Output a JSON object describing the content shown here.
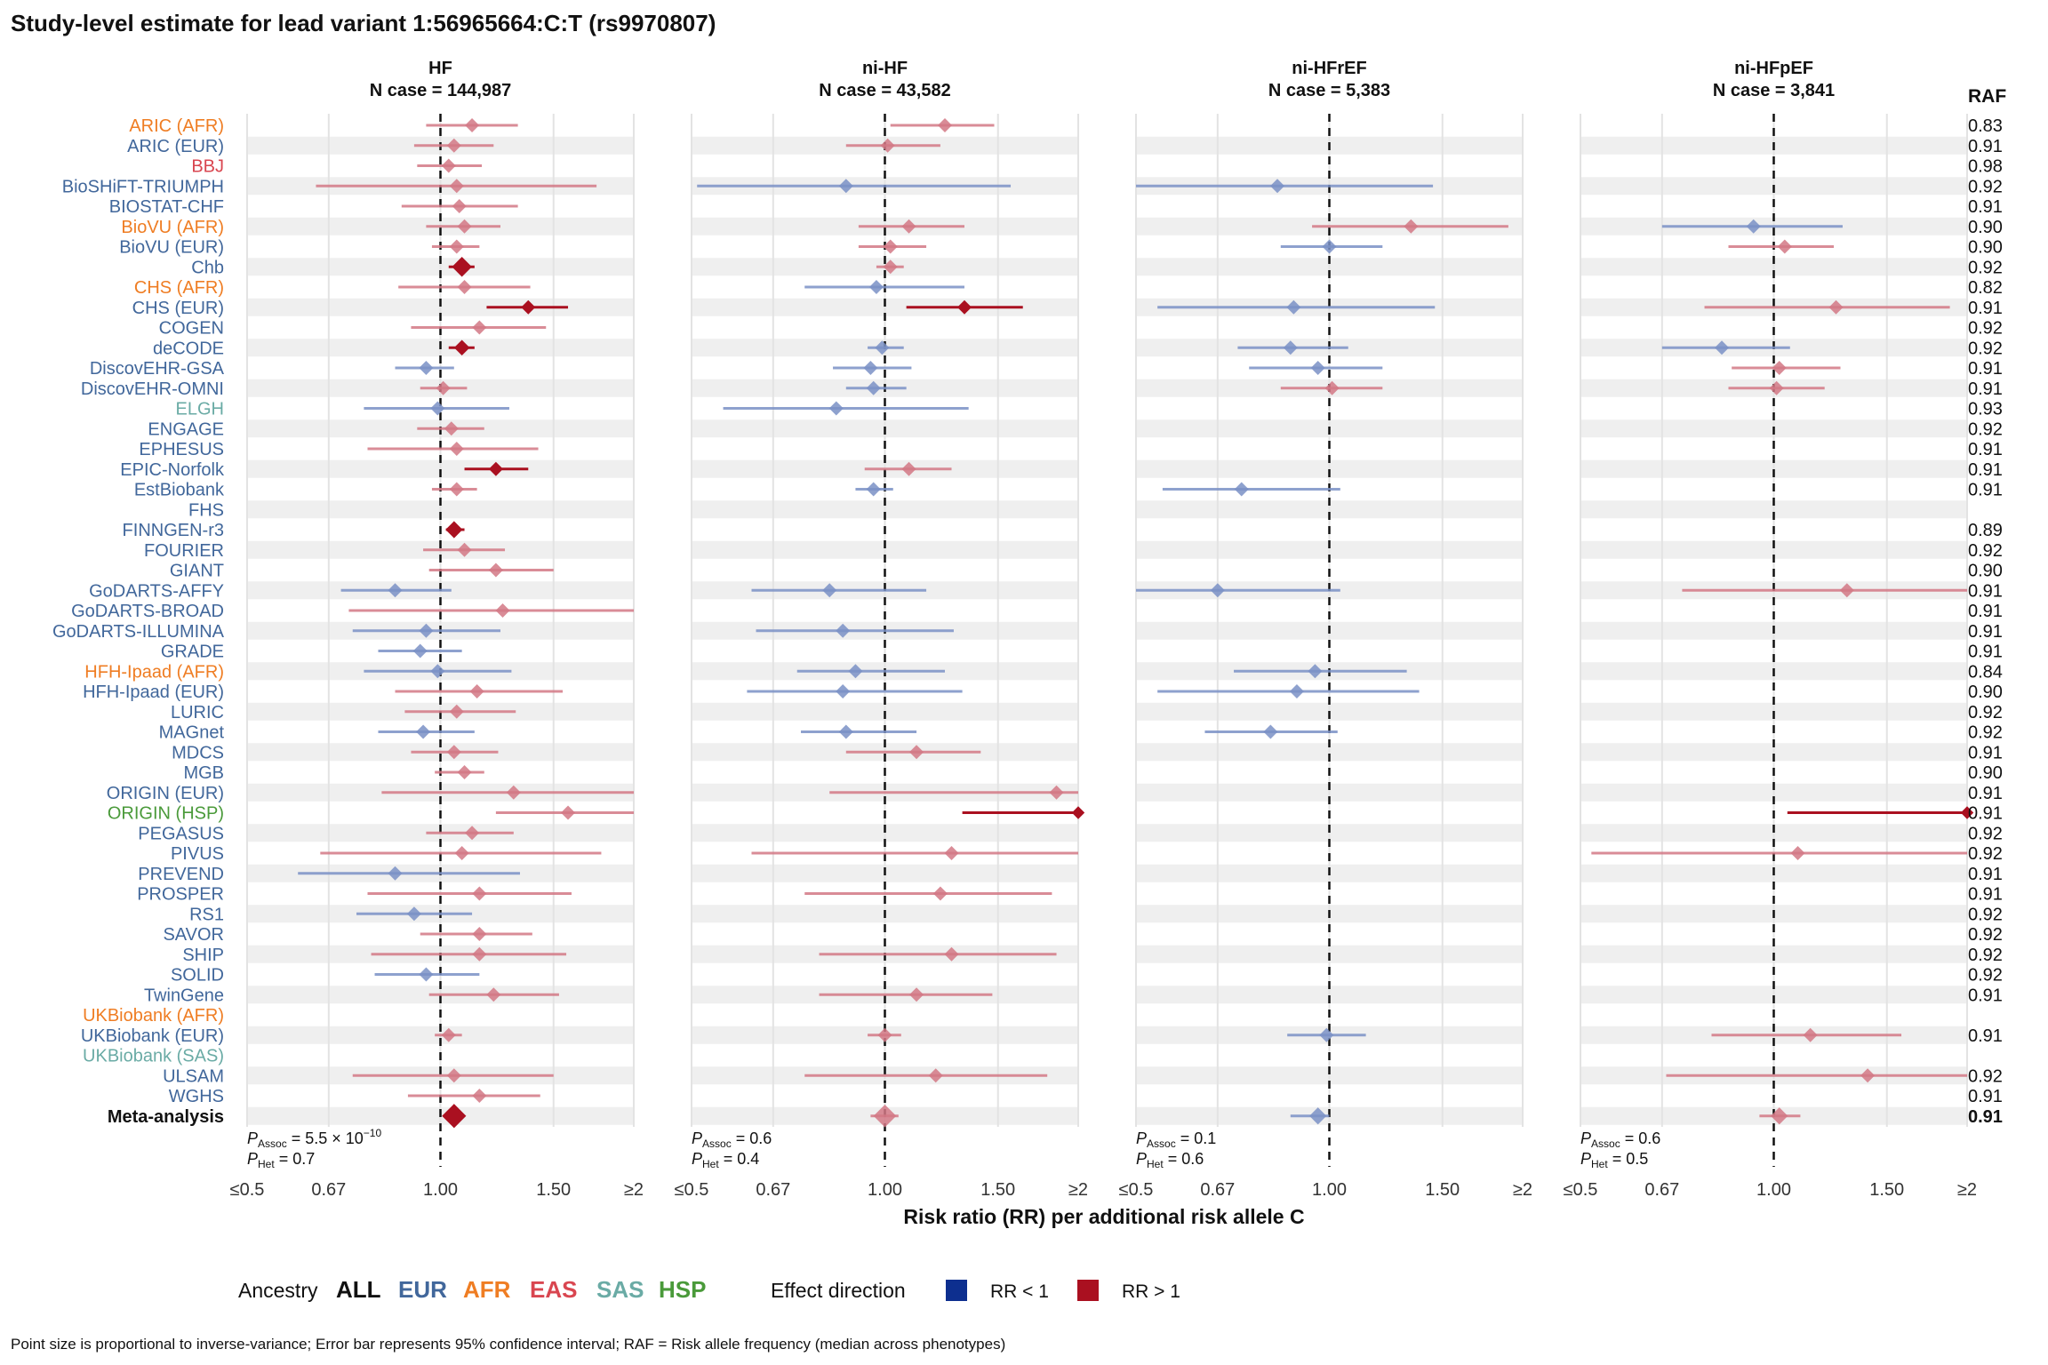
{
  "title": "Study-level estimate for lead variant 1:56965664:C:T (rs9970807)",
  "xlabel": "Risk ratio (RR) per additional risk allele C",
  "raf_header": "RAF",
  "caption": "Point size is proportional to inverse-variance; Error bar represents 95% confidence interval; RAF = Risk allele frequency (median across phenotypes)",
  "legend": {
    "ancestry_label": "Ancestry",
    "ancestries": [
      {
        "label": "ALL",
        "color": "#111111"
      },
      {
        "label": "EUR",
        "color": "#41679b"
      },
      {
        "label": "AFR",
        "color": "#ef7d23"
      },
      {
        "label": "EAS",
        "color": "#d94650"
      },
      {
        "label": "SAS",
        "color": "#6aaba5"
      },
      {
        "label": "HSP",
        "color": "#4a9a3a"
      }
    ],
    "effect_label": "Effect direction",
    "effects": [
      {
        "label": "RR < 1",
        "color": "#0d2f8f"
      },
      {
        "label": "RR > 1",
        "color": "#aa1020"
      }
    ]
  },
  "colors": {
    "below_one": "#7a91c6",
    "above_one": "#d27885",
    "sig_above": "#aa1020",
    "grid": "#e3e3e3",
    "stripe": "#efefef"
  },
  "chart_data": {
    "type": "forest",
    "x_ticks": [
      "≤0.5",
      "0.67",
      "1.00",
      "1.50",
      "≥2"
    ],
    "x_range": [
      0.5,
      2
    ],
    "x_scale": "log",
    "studies": [
      {
        "name": "ARIC (AFR)",
        "anc": "AFR"
      },
      {
        "name": "ARIC (EUR)",
        "anc": "EUR"
      },
      {
        "name": "BBJ",
        "anc": "EAS"
      },
      {
        "name": "BioSHiFT-TRIUMPH",
        "anc": "EUR"
      },
      {
        "name": "BIOSTAT-CHF",
        "anc": "EUR"
      },
      {
        "name": "BioVU (AFR)",
        "anc": "AFR"
      },
      {
        "name": "BioVU (EUR)",
        "anc": "EUR"
      },
      {
        "name": "Chb",
        "anc": "EUR"
      },
      {
        "name": "CHS (AFR)",
        "anc": "AFR"
      },
      {
        "name": "CHS (EUR)",
        "anc": "EUR"
      },
      {
        "name": "COGEN",
        "anc": "EUR"
      },
      {
        "name": "deCODE",
        "anc": "EUR"
      },
      {
        "name": "DiscovEHR-GSA",
        "anc": "EUR"
      },
      {
        "name": "DiscovEHR-OMNI",
        "anc": "EUR"
      },
      {
        "name": "ELGH",
        "anc": "SAS"
      },
      {
        "name": "ENGAGE",
        "anc": "EUR"
      },
      {
        "name": "EPHESUS",
        "anc": "EUR"
      },
      {
        "name": "EPIC-Norfolk",
        "anc": "EUR"
      },
      {
        "name": "EstBiobank",
        "anc": "EUR"
      },
      {
        "name": "FHS",
        "anc": "EUR"
      },
      {
        "name": "FINNGEN-r3",
        "anc": "EUR"
      },
      {
        "name": "FOURIER",
        "anc": "EUR"
      },
      {
        "name": "GIANT",
        "anc": "EUR"
      },
      {
        "name": "GoDARTS-AFFY",
        "anc": "EUR"
      },
      {
        "name": "GoDARTS-BROAD",
        "anc": "EUR"
      },
      {
        "name": "GoDARTS-ILLUMINA",
        "anc": "EUR"
      },
      {
        "name": "GRADE",
        "anc": "EUR"
      },
      {
        "name": "HFH-Ipaad (AFR)",
        "anc": "AFR"
      },
      {
        "name": "HFH-Ipaad (EUR)",
        "anc": "EUR"
      },
      {
        "name": "LURIC",
        "anc": "EUR"
      },
      {
        "name": "MAGnet",
        "anc": "EUR"
      },
      {
        "name": "MDCS",
        "anc": "EUR"
      },
      {
        "name": "MGB",
        "anc": "EUR"
      },
      {
        "name": "ORIGIN (EUR)",
        "anc": "EUR"
      },
      {
        "name": "ORIGIN (HSP)",
        "anc": "HSP"
      },
      {
        "name": "PEGASUS",
        "anc": "EUR"
      },
      {
        "name": "PIVUS",
        "anc": "EUR"
      },
      {
        "name": "PREVEND",
        "anc": "EUR"
      },
      {
        "name": "PROSPER",
        "anc": "EUR"
      },
      {
        "name": "RS1",
        "anc": "EUR"
      },
      {
        "name": "SAVOR",
        "anc": "EUR"
      },
      {
        "name": "SHIP",
        "anc": "EUR"
      },
      {
        "name": "SOLID",
        "anc": "EUR"
      },
      {
        "name": "TwinGene",
        "anc": "EUR"
      },
      {
        "name": "UKBiobank (AFR)",
        "anc": "AFR"
      },
      {
        "name": "UKBiobank (EUR)",
        "anc": "EUR"
      },
      {
        "name": "UKBiobank (SAS)",
        "anc": "SAS"
      },
      {
        "name": "ULSAM",
        "anc": "EUR"
      },
      {
        "name": "WGHS",
        "anc": "EUR"
      },
      {
        "name": "Meta-analysis",
        "anc": "ALL"
      }
    ],
    "raf": [
      "0.83",
      "0.91",
      "0.98",
      "0.92",
      "0.91",
      "0.90",
      "0.90",
      "0.92",
      "0.82",
      "0.91",
      "0.92",
      "0.92",
      "0.91",
      "0.91",
      "0.93",
      "0.92",
      "0.91",
      "0.91",
      "0.91",
      "",
      "0.89",
      "0.92",
      "0.90",
      "0.91",
      "0.91",
      "0.91",
      "0.91",
      "0.84",
      "0.90",
      "0.92",
      "0.92",
      "0.91",
      "0.90",
      "0.91",
      "0.91",
      "0.92",
      "0.92",
      "0.91",
      "0.91",
      "0.92",
      "0.92",
      "0.92",
      "0.92",
      "0.91",
      "",
      "0.91",
      "",
      "0.92",
      "0.91",
      "0.91"
    ],
    "panels": [
      {
        "title": "HF",
        "ncase": "N case = 144,987",
        "p_assoc_sym": "P",
        "p_assoc_sub": "Assoc",
        "p_assoc_val": " = 5.5 × 10",
        "p_assoc_exp": "−10",
        "p_het_sym": "P",
        "p_het_sub": "Het",
        "p_het_val": " = 0.7",
        "rows": [
          [
            1.12,
            0.95,
            1.32,
            "n",
            1.0
          ],
          [
            1.05,
            0.91,
            1.21,
            "n",
            1.0
          ],
          [
            1.03,
            0.92,
            1.16,
            "n",
            1.0
          ],
          [
            1.06,
            0.64,
            1.75,
            "n",
            1.0
          ],
          [
            1.07,
            0.87,
            1.32,
            "n",
            1.0
          ],
          [
            1.09,
            0.95,
            1.24,
            "n",
            1.0
          ],
          [
            1.06,
            0.97,
            1.15,
            "n",
            1.0
          ],
          [
            1.08,
            1.03,
            1.13,
            "s",
            1.4
          ],
          [
            1.09,
            0.86,
            1.38,
            "n",
            1.0
          ],
          [
            1.37,
            1.18,
            1.58,
            "s",
            1.0
          ],
          [
            1.15,
            0.9,
            1.46,
            "n",
            1.0
          ],
          [
            1.08,
            1.03,
            1.13,
            "s",
            1.1
          ],
          [
            0.95,
            0.85,
            1.05,
            "l",
            1.0
          ],
          [
            1.01,
            0.93,
            1.1,
            "n",
            1.0
          ],
          [
            0.99,
            0.76,
            1.28,
            "l",
            1.0
          ],
          [
            1.04,
            0.92,
            1.17,
            "n",
            1.0
          ],
          [
            1.06,
            0.77,
            1.42,
            "n",
            1.0
          ],
          [
            1.22,
            1.09,
            1.37,
            "s",
            1.0
          ],
          [
            1.06,
            0.97,
            1.14,
            "n",
            1.0
          ],
          null,
          [
            1.05,
            1.02,
            1.09,
            "s",
            1.2
          ],
          [
            1.09,
            0.94,
            1.26,
            "n",
            1.0
          ],
          [
            1.22,
            0.96,
            1.5,
            "n",
            1.0
          ],
          [
            0.85,
            0.7,
            1.04,
            "l",
            1.0
          ],
          [
            1.25,
            0.72,
            2.05,
            "n",
            1.0
          ],
          [
            0.95,
            0.73,
            1.24,
            "l",
            1.0
          ],
          [
            0.93,
            0.8,
            1.08,
            "l",
            1.0
          ],
          [
            0.99,
            0.76,
            1.29,
            "l",
            1.0
          ],
          [
            1.14,
            0.85,
            1.55,
            "n",
            1.0
          ],
          [
            1.06,
            0.88,
            1.31,
            "n",
            1.0
          ],
          [
            0.94,
            0.8,
            1.13,
            "l",
            1.0
          ],
          [
            1.05,
            0.9,
            1.23,
            "n",
            1.0
          ],
          [
            1.09,
            0.98,
            1.17,
            "n",
            1.0
          ],
          [
            1.3,
            0.81,
            2.07,
            "n",
            1.0
          ],
          [
            1.58,
            1.22,
            2.1,
            "n",
            1.0
          ],
          [
            1.12,
            0.95,
            1.3,
            "n",
            1.0
          ],
          [
            1.08,
            0.65,
            1.78,
            "n",
            1.0
          ],
          [
            0.85,
            0.6,
            1.33,
            "l",
            1.0
          ],
          [
            1.15,
            0.77,
            1.6,
            "n",
            1.0
          ],
          [
            0.91,
            0.74,
            1.12,
            "l",
            1.0
          ],
          [
            1.15,
            0.93,
            1.39,
            "n",
            1.0
          ],
          [
            1.15,
            0.78,
            1.57,
            "n",
            1.0
          ],
          [
            0.95,
            0.79,
            1.15,
            "l",
            1.0
          ],
          [
            1.21,
            0.96,
            1.53,
            "n",
            1.0
          ],
          null,
          [
            1.03,
            0.98,
            1.08,
            "n",
            1.0
          ],
          null,
          [
            1.05,
            0.73,
            1.5,
            "n",
            1.0
          ],
          [
            1.15,
            0.89,
            1.43,
            "n",
            1.0
          ],
          [
            1.05,
            1.02,
            1.08,
            "s",
            1.7
          ]
        ]
      },
      {
        "title": "ni-HF",
        "ncase": "N case = 43,582",
        "p_assoc_sym": "P",
        "p_assoc_sub": "Assoc",
        "p_assoc_val": " = 0.6",
        "p_assoc_exp": "",
        "p_het_sym": "P",
        "p_het_sub": "Het",
        "p_het_val": " = 0.4",
        "rows": [
          [
            1.24,
            1.02,
            1.48,
            "n",
            1.0
          ],
          [
            1.01,
            0.87,
            1.22,
            "n",
            1.0
          ],
          null,
          [
            0.87,
            0.51,
            1.57,
            "l",
            1.0
          ],
          null,
          [
            1.09,
            0.91,
            1.33,
            "n",
            1.0
          ],
          [
            1.02,
            0.91,
            1.16,
            "n",
            1.0
          ],
          [
            1.02,
            0.97,
            1.07,
            "n",
            1.0
          ],
          [
            0.97,
            0.75,
            1.33,
            "l",
            1.0
          ],
          [
            1.33,
            1.08,
            1.64,
            "s",
            1.0
          ],
          null,
          [
            0.99,
            0.94,
            1.07,
            "l",
            1.0
          ],
          [
            0.95,
            0.83,
            1.1,
            "l",
            1.0
          ],
          [
            0.96,
            0.87,
            1.08,
            "l",
            1.0
          ],
          [
            0.84,
            0.56,
            1.35,
            "l",
            1.0
          ],
          null,
          null,
          [
            1.09,
            0.93,
            1.27,
            "n",
            1.0
          ],
          [
            0.96,
            0.9,
            1.03,
            "l",
            1.0
          ],
          null,
          null,
          null,
          null,
          [
            0.82,
            0.62,
            1.16,
            "l",
            1.0
          ],
          null,
          [
            0.86,
            0.63,
            1.28,
            "l",
            1.0
          ],
          null,
          [
            0.9,
            0.73,
            1.24,
            "l",
            1.0
          ],
          [
            0.86,
            0.61,
            1.32,
            "l",
            1.0
          ],
          null,
          [
            0.87,
            0.74,
            1.12,
            "l",
            1.0
          ],
          [
            1.12,
            0.87,
            1.41,
            "n",
            1.0
          ],
          null,
          [
            1.85,
            0.82,
            2.05,
            "n",
            1.0
          ],
          [
            2.0,
            1.32,
            2.1,
            "s",
            0.9
          ],
          null,
          [
            1.27,
            0.62,
            2.05,
            "n",
            1.0
          ],
          null,
          [
            1.22,
            0.75,
            1.82,
            "n",
            1.0
          ],
          null,
          null,
          [
            1.27,
            0.79,
            1.85,
            "n",
            1.0
          ],
          null,
          [
            1.12,
            0.79,
            1.47,
            "n",
            1.0
          ],
          null,
          [
            1.0,
            0.94,
            1.06,
            "n",
            1.0
          ],
          null,
          [
            1.2,
            0.75,
            1.79,
            "n",
            1.0
          ],
          null,
          [
            1.0,
            0.95,
            1.05,
            "n",
            1.6
          ]
        ]
      },
      {
        "title": "ni-HFrEF",
        "ncase": "N case = 5,383",
        "p_assoc_sym": "P",
        "p_assoc_sub": "Assoc",
        "p_assoc_val": " = 0.1",
        "p_assoc_exp": "",
        "p_het_sym": "P",
        "p_het_sub": "Het",
        "p_het_val": " = 0.6",
        "rows": [
          null,
          null,
          null,
          [
            0.83,
            0.5,
            1.45,
            "l",
            1.0
          ],
          null,
          [
            1.34,
            0.94,
            1.9,
            "n",
            1.0
          ],
          [
            1.0,
            0.84,
            1.21,
            "l",
            1.0
          ],
          null,
          null,
          [
            0.88,
            0.54,
            1.46,
            "l",
            1.0
          ],
          null,
          [
            0.87,
            0.72,
            1.07,
            "l",
            1.0
          ],
          [
            0.96,
            0.75,
            1.21,
            "l",
            1.0
          ],
          [
            1.01,
            0.84,
            1.21,
            "n",
            1.0
          ],
          null,
          null,
          null,
          null,
          [
            0.73,
            0.55,
            1.04,
            "l",
            1.0
          ],
          null,
          null,
          null,
          null,
          [
            0.67,
            0.5,
            1.04,
            "l",
            1.0
          ],
          null,
          null,
          null,
          [
            0.95,
            0.71,
            1.32,
            "l",
            1.0
          ],
          [
            0.89,
            0.54,
            1.38,
            "l",
            1.0
          ],
          null,
          [
            0.81,
            0.64,
            1.03,
            "l",
            1.0
          ],
          null,
          null,
          null,
          null,
          null,
          null,
          null,
          null,
          null,
          null,
          null,
          null,
          null,
          null,
          [
            0.99,
            0.86,
            1.14,
            "l",
            1.0
          ],
          null,
          null,
          null,
          [
            0.96,
            0.87,
            1.0,
            "l",
            1.2
          ]
        ]
      },
      {
        "title": "ni-HFpEF",
        "ncase": "N case = 3,841",
        "p_assoc_sym": "P",
        "p_assoc_sub": "Assoc",
        "p_assoc_val": " = 0.6",
        "p_assoc_exp": "",
        "p_het_sym": "P",
        "p_het_sub": "Het",
        "p_het_val": " = 0.5",
        "rows": [
          null,
          null,
          null,
          null,
          null,
          [
            0.93,
            0.67,
            1.28,
            "l",
            1.0
          ],
          [
            1.04,
            0.85,
            1.24,
            "n",
            1.0
          ],
          null,
          null,
          [
            1.25,
            0.78,
            1.88,
            "n",
            1.0
          ],
          null,
          [
            0.83,
            0.67,
            1.06,
            "l",
            1.0
          ],
          [
            1.02,
            0.86,
            1.27,
            "n",
            1.0
          ],
          [
            1.01,
            0.85,
            1.2,
            "n",
            1.0
          ],
          null,
          null,
          null,
          null,
          null,
          null,
          null,
          null,
          null,
          [
            1.3,
            0.72,
            2.05,
            "n",
            1.0
          ],
          null,
          null,
          null,
          null,
          null,
          null,
          null,
          null,
          null,
          null,
          [
            2.0,
            1.05,
            2.1,
            "s",
            0.9
          ],
          null,
          [
            1.09,
            0.52,
            2.05,
            "n",
            1.0
          ],
          null,
          null,
          null,
          null,
          null,
          null,
          null,
          null,
          [
            1.14,
            0.8,
            1.58,
            "n",
            1.0
          ],
          null,
          [
            1.4,
            0.68,
            2.05,
            "n",
            1.0
          ],
          null,
          [
            1.02,
            0.95,
            1.1,
            "n",
            1.2
          ]
        ]
      }
    ]
  }
}
